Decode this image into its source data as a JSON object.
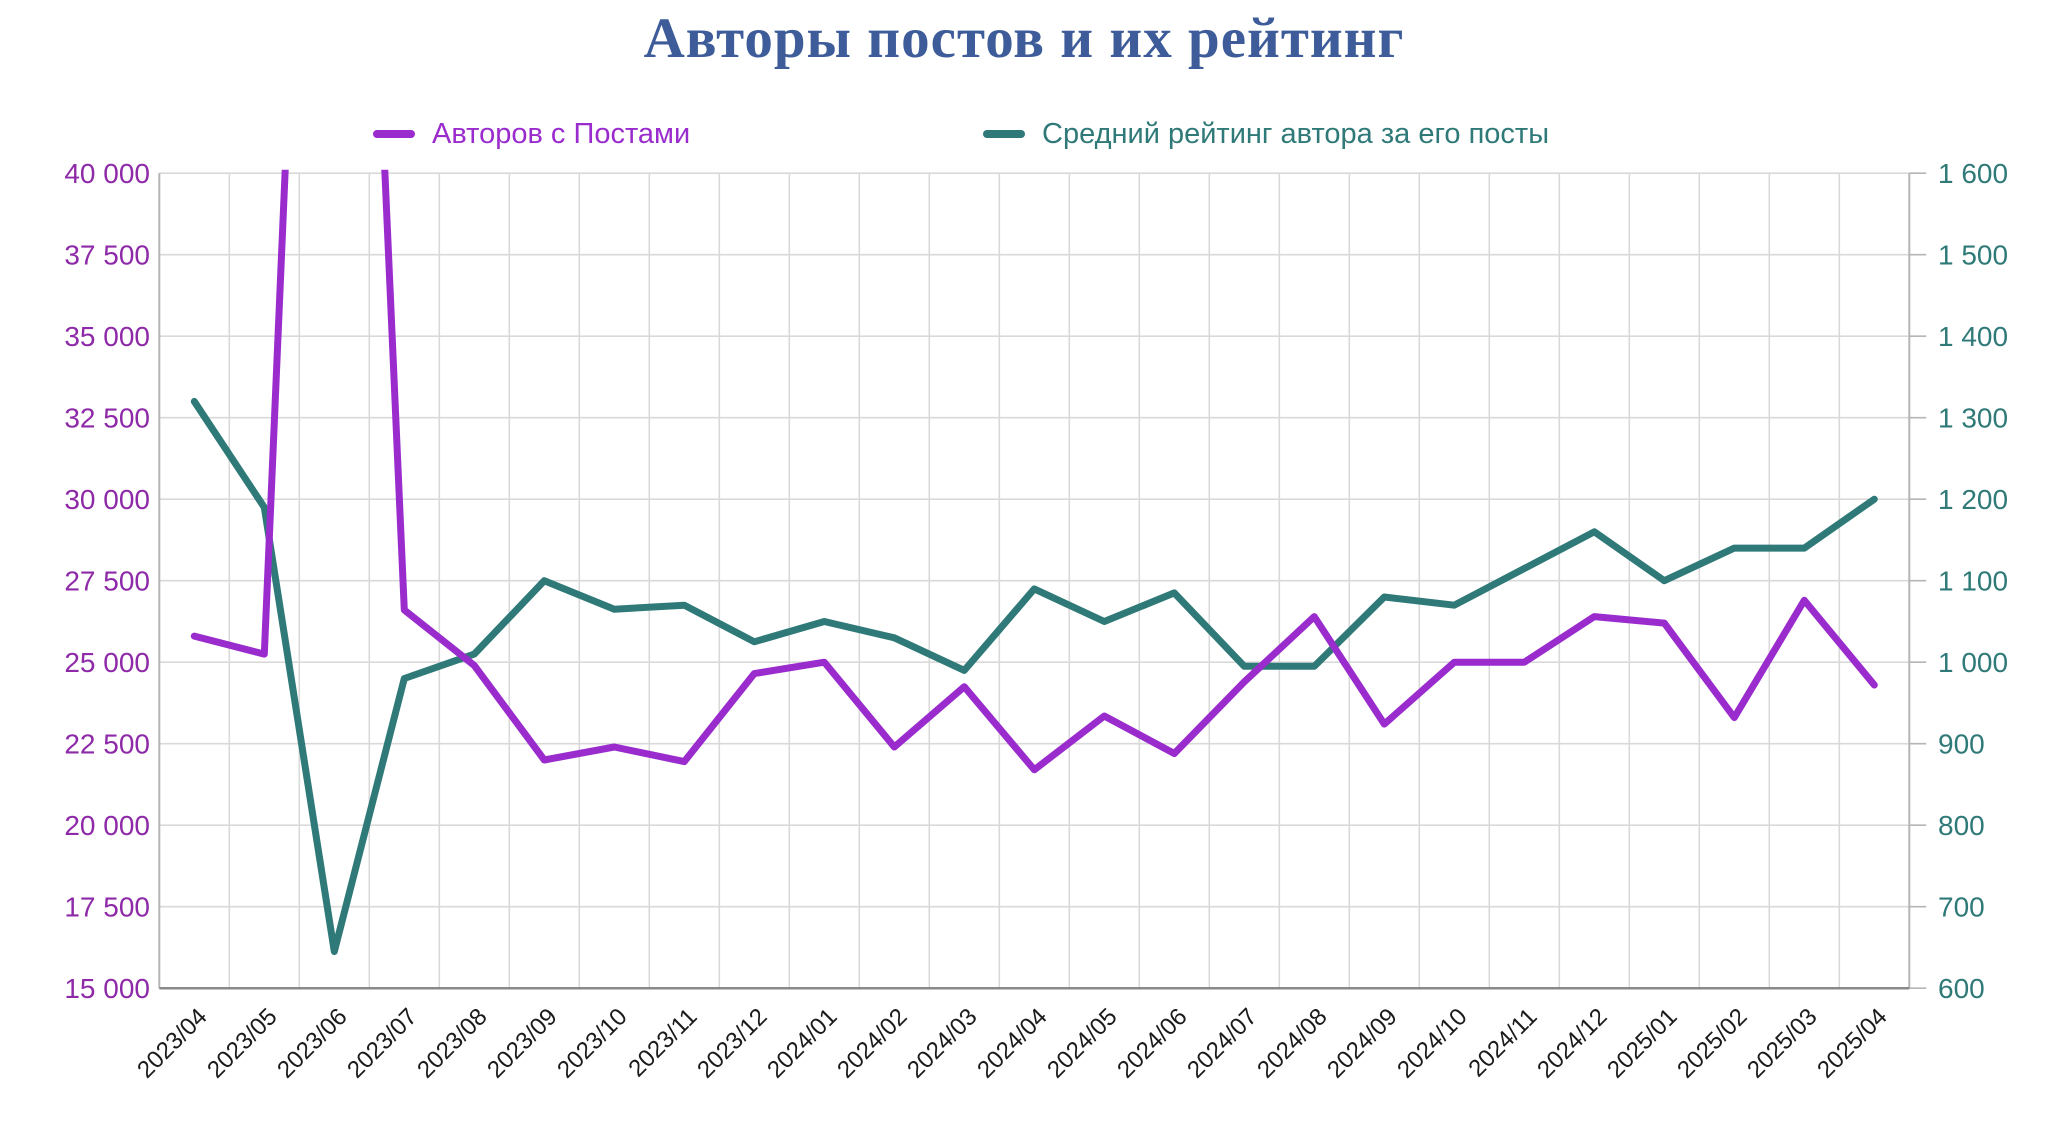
{
  "title": "Авторы постов и их рейтинг",
  "colors": {
    "title": "#3d5c99",
    "authors_line": "#9a2cce",
    "authors_axis_labels": "#8e2aa8",
    "rating_line": "#2f7a78",
    "rating_axis_labels": "#2f7a78",
    "x_labels": "#1a1a1a",
    "gridline": "#d9d9d9",
    "plot_side_border": "#b5b5b5",
    "plot_bottom_border": "#8a8a8a",
    "background": "#ffffff"
  },
  "legend": [
    {
      "label": "Авторов с Постами",
      "series": "authors",
      "color": "#9a2cce"
    },
    {
      "label": "Средний рейтинг автора за его посты",
      "series": "rating",
      "color": "#2f7a78"
    }
  ],
  "chart_data": {
    "type": "line",
    "title": "Авторы постов и их рейтинг",
    "x": [
      "2023/04",
      "2023/05",
      "2023/06",
      "2023/07",
      "2023/08",
      "2023/09",
      "2023/10",
      "2023/11",
      "2023/12",
      "2024/01",
      "2024/02",
      "2024/03",
      "2024/04",
      "2024/05",
      "2024/06",
      "2024/07",
      "2024/08",
      "2024/09",
      "2024/10",
      "2024/11",
      "2024/12",
      "2025/01",
      "2025/02",
      "2025/03",
      "2025/04"
    ],
    "series": [
      {
        "name": "Авторов с Постами",
        "axis": "left",
        "color": "#9a2cce",
        "values": [
          25800,
          25250,
          null,
          26600,
          24900,
          22000,
          22400,
          21950,
          24650,
          25000,
          22400,
          24250,
          21700,
          23350,
          22200,
          24400,
          26400,
          23100,
          25000,
          25000,
          26400,
          26200,
          23300,
          26900,
          24300
        ],
        "note": "value at 2023/06 spikes above the visible axis maximum (line is clipped at the top of the plot)"
      },
      {
        "name": "Средний рейтинг автора за его посты",
        "axis": "right",
        "color": "#2f7a78",
        "values": [
          1320,
          1190,
          645,
          980,
          1010,
          1100,
          1065,
          1070,
          1025,
          1050,
          1030,
          990,
          1090,
          1050,
          1085,
          995,
          995,
          1080,
          1070,
          1115,
          1160,
          1100,
          1140,
          1140,
          1200
        ]
      }
    ],
    "left_axis": {
      "min": 15000,
      "max": 40000,
      "step": 2500,
      "tick_labels": [
        "40 000",
        "37 500",
        "35 000",
        "32 500",
        "30 000",
        "27 500",
        "25 000",
        "22 500",
        "20 000",
        "17 500",
        "15 000"
      ]
    },
    "right_axis": {
      "min": 600,
      "max": 1600,
      "step": 100,
      "tick_labels": [
        "1 600",
        "1 500",
        "1 400",
        "1 300",
        "1 200",
        "1 100",
        "1 000",
        "900",
        "800",
        "700",
        "600"
      ]
    },
    "grid": true,
    "legend_position": "top",
    "clipped_peak_render_value": 75000
  }
}
